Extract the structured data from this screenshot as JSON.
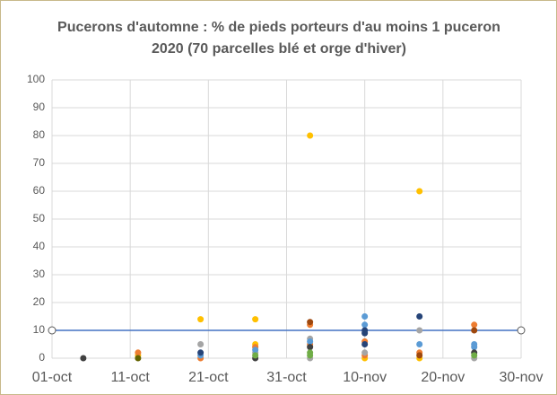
{
  "chart_data": {
    "type": "scatter",
    "title": "Pucerons d'automne : % de pieds porteurs d'au moins 1 puceron 2020 (70 parcelles blé et orge d'hiver)",
    "xlim": [
      "01-oct",
      "30-nov"
    ],
    "xticks": [
      "01-oct",
      "11-oct",
      "21-oct",
      "31-oct",
      "10-nov",
      "20-nov",
      "30-nov"
    ],
    "ylim": [
      0,
      100
    ],
    "yticks": [
      0,
      10,
      20,
      30,
      40,
      50,
      60,
      70,
      80,
      90,
      100
    ],
    "grid": true,
    "threshold": 10,
    "threshold_color": "#4472c4",
    "series": [
      {
        "color": "#ffc000",
        "x": [
          "12-oct",
          "20-oct",
          "27-oct",
          "27-oct",
          "03-nov",
          "10-nov",
          "17-nov",
          "17-nov"
        ],
        "values": [
          1,
          14,
          14,
          5,
          80,
          0,
          60,
          0
        ]
      },
      {
        "color": "#ed7d31",
        "x": [
          "12-oct",
          "20-oct",
          "27-oct",
          "03-nov",
          "03-nov",
          "10-nov",
          "10-nov",
          "17-nov",
          "24-nov"
        ],
        "values": [
          2,
          0,
          4,
          12,
          5,
          6,
          1,
          2,
          12
        ]
      },
      {
        "color": "#a5a5a5",
        "x": [
          "20-oct",
          "27-oct",
          "03-nov",
          "03-nov",
          "10-nov",
          "17-nov",
          "24-nov"
        ],
        "values": [
          5,
          2,
          7,
          0,
          2,
          10,
          0
        ]
      },
      {
        "color": "#5b9bd5",
        "x": [
          "20-oct",
          "27-oct",
          "03-nov",
          "10-nov",
          "10-nov",
          "17-nov",
          "24-nov",
          "24-nov"
        ],
        "values": [
          1,
          3,
          6,
          15,
          12,
          5,
          5,
          4
        ]
      },
      {
        "color": "#264478",
        "x": [
          "20-oct",
          "10-nov",
          "10-nov",
          "10-nov",
          "17-nov"
        ],
        "values": [
          2,
          10,
          9,
          5,
          15
        ]
      },
      {
        "color": "#404040",
        "x": [
          "05-oct",
          "27-oct",
          "03-nov",
          "24-nov"
        ],
        "values": [
          0,
          0,
          4,
          2
        ]
      },
      {
        "color": "#70ad47",
        "x": [
          "27-oct",
          "03-nov",
          "03-nov",
          "24-nov"
        ],
        "values": [
          1,
          2,
          1,
          1
        ]
      },
      {
        "color": "#9e480e",
        "x": [
          "03-nov",
          "17-nov",
          "24-nov"
        ],
        "values": [
          13,
          1,
          10
        ]
      },
      {
        "color": "#636300",
        "x": [
          "12-oct"
        ],
        "values": [
          0
        ]
      }
    ]
  }
}
